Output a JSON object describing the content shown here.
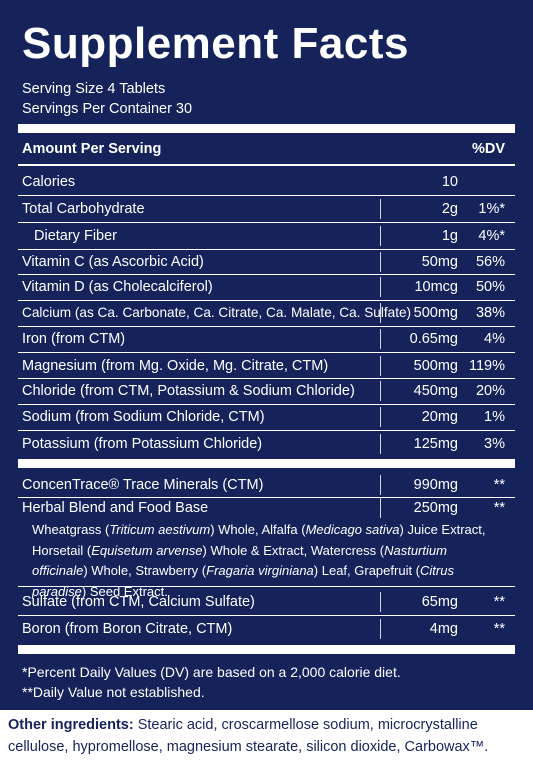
{
  "title": "Supplement Facts",
  "serving_size": "Serving Size 4 Tablets",
  "servings_per_container": "Servings Per Container 30",
  "header": {
    "amount_label": "Amount Per Serving",
    "dv_label": "%DV"
  },
  "rows": [
    {
      "name": "Calories",
      "amount": "10",
      "dv": ""
    },
    {
      "name": "Total Carbohydrate",
      "amount": "2g",
      "dv": "1%*"
    },
    {
      "name": "Dietary Fiber",
      "amount": "1g",
      "dv": "4%*"
    },
    {
      "name": "Vitamin C (as Ascorbic Acid)",
      "amount": "50mg",
      "dv": "56%"
    },
    {
      "name": "Vitamin D (as Cholecalciferol)",
      "amount": "10mcg",
      "dv": "50%"
    },
    {
      "name": "Calcium (as Ca. Carbonate, Ca. Citrate, Ca. Malate, Ca. Sulfate)",
      "amount": "500mg",
      "dv": "38%"
    },
    {
      "name": "Iron (from CTM)",
      "amount": "0.65mg",
      "dv": "4%"
    },
    {
      "name": "Magnesium (from Mg. Oxide, Mg. Citrate, CTM)",
      "amount": "500mg",
      "dv": "119%"
    },
    {
      "name": "Chloride (from CTM, Potassium & Sodium Chloride)",
      "amount": "450mg",
      "dv": "20%"
    },
    {
      "name": "Sodium (from Sodium Chloride, CTM)",
      "amount": "20mg",
      "dv": "1%"
    },
    {
      "name": "Potassium (from Potassium Chloride)",
      "amount": "125mg",
      "dv": "3%"
    },
    {
      "name": "ConcenTrace® Trace Minerals (CTM)",
      "amount": "990mg",
      "dv": "**"
    },
    {
      "name": "Herbal Blend and Food Base",
      "amount": "250mg",
      "dv": "**"
    },
    {
      "name": "Sulfate (from CTM, Calcium Sulfate)",
      "amount": "65mg",
      "dv": "**"
    },
    {
      "name": "Boron (from Boron Citrate, CTM)",
      "amount": "4mg",
      "dv": "**"
    }
  ],
  "blend_parts": {
    "p1": "Wheatgrass (",
    "p1i": "Triticum aestivum",
    "p2": ") Whole, Alfalfa (",
    "p2i": "Medicago sativa",
    "p3": ") Juice Extract, Horsetail (",
    "p3i": "Equisetum arvense",
    "p4": ") Whole & Extract, Watercress (",
    "p4i": "Nasturtium officinale",
    "p5": ") Whole, Strawberry (",
    "p5i": "Fragaria virginiana",
    "p6": ") Leaf, Grapefruit (",
    "p6i": "Citrus paradise",
    "p7": ") Seed Extract."
  },
  "footnotes": {
    "dv_note": "*Percent Daily Values (DV) are based on a 2,000 calorie diet.",
    "na_note": "**Daily Value not established."
  },
  "other_ingredients": {
    "label": "Other ingredients:",
    "text": " Stearic acid, croscarmellose sodium, microcrystalline cellulose, hypromellose, magnesium stearate, silicon dioxide, Carbowax™."
  }
}
